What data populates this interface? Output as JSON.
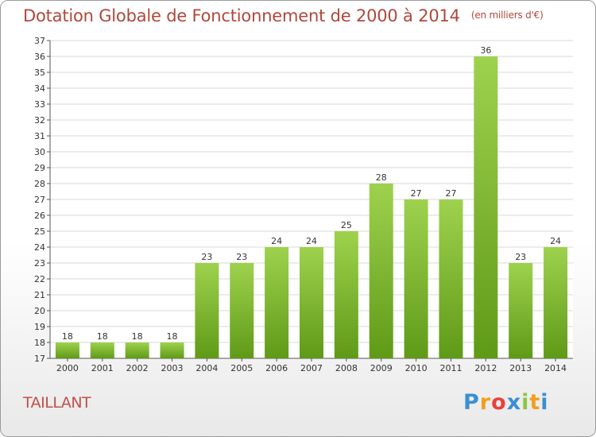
{
  "header": {
    "title": "Dotation Globale de Fonctionnement de 2000 à 2014",
    "unit": "(en milliers d'€)"
  },
  "footer": {
    "commune": "TAILLANT",
    "logo_letters": [
      {
        "ch": "P",
        "color": "#3a8fd0"
      },
      {
        "ch": "r",
        "color": "#f0a020"
      },
      {
        "ch": "o",
        "color": "#e8413c"
      },
      {
        "ch": "x",
        "color": "#3a8fd0"
      },
      {
        "ch": "i",
        "color": "#8cc63f"
      },
      {
        "ch": "t",
        "color": "#f0a020"
      },
      {
        "ch": "i",
        "color": "#3a8fd0"
      }
    ]
  },
  "colors": {
    "bar_light": "#9ed24e",
    "bar_dark": "#5f9a17",
    "title": "#b0473c",
    "grid": "#d8d8d8"
  },
  "chart_data": {
    "type": "bar",
    "title": "Dotation Globale de Fonctionnement de 2000 à 2014",
    "subtitle": "(en milliers d'€)",
    "xlabel": "",
    "ylabel": "",
    "categories": [
      "2000",
      "2001",
      "2002",
      "2003",
      "2004",
      "2005",
      "2006",
      "2007",
      "2008",
      "2009",
      "2010",
      "2011",
      "2012",
      "2013",
      "2014"
    ],
    "values": [
      18,
      18,
      18,
      18,
      23,
      23,
      24,
      24,
      25,
      28,
      27,
      27,
      36,
      23,
      24
    ],
    "ylim": [
      17,
      37
    ],
    "yticks": [
      17,
      18,
      19,
      20,
      21,
      22,
      23,
      24,
      25,
      26,
      27,
      28,
      29,
      30,
      31,
      32,
      33,
      34,
      35,
      36,
      37
    ],
    "grid": true,
    "legend": "none"
  }
}
